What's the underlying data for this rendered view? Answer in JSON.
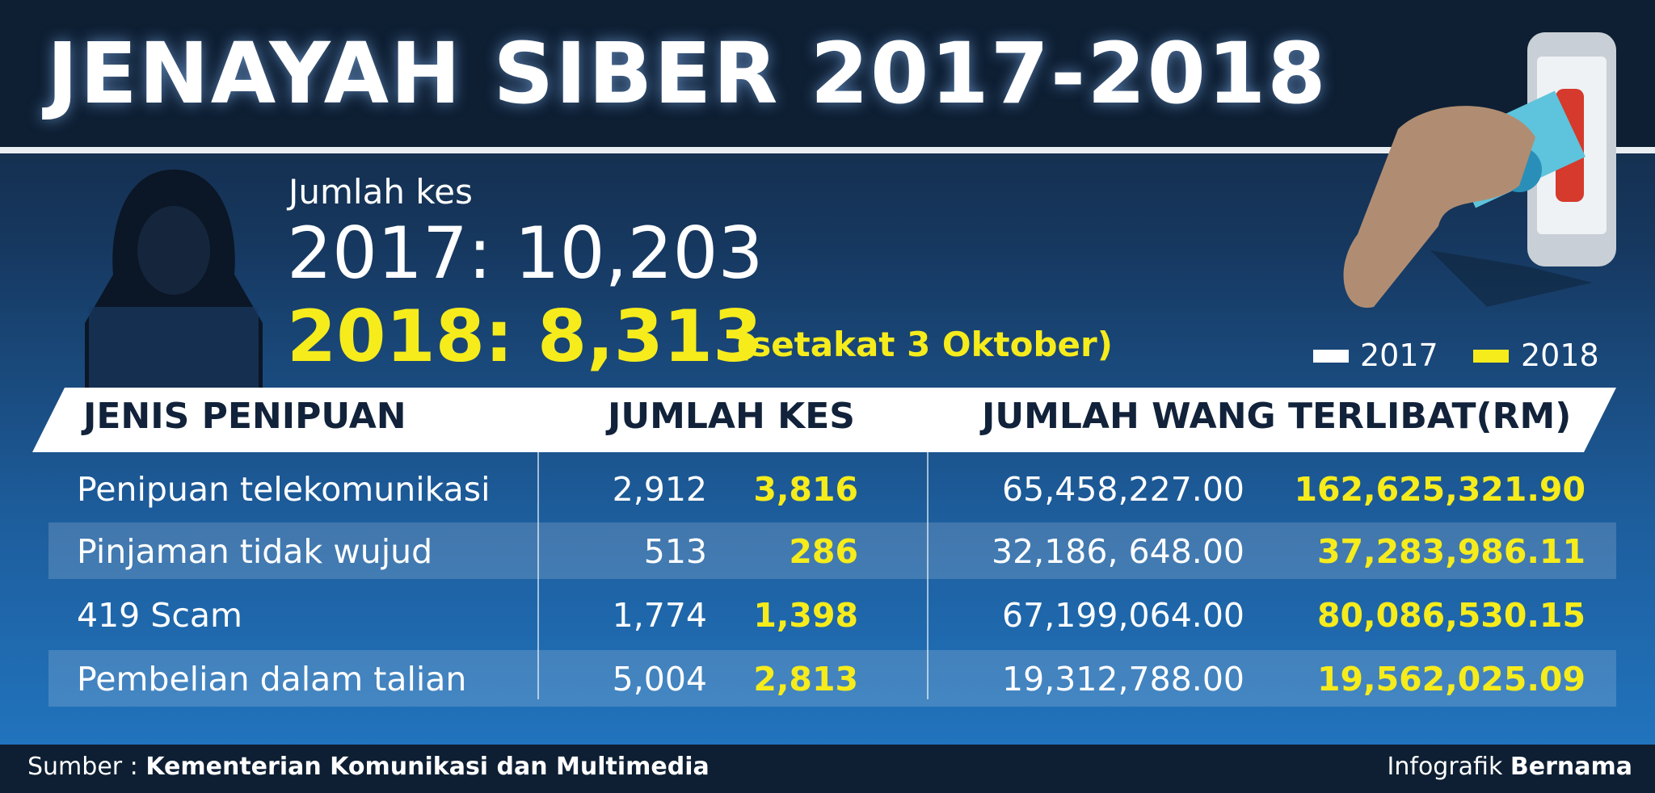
{
  "header": {
    "title": "JENAYAH SIBER 2017-2018"
  },
  "summary": {
    "label": "Jumlah kes",
    "line2017": "2017: 10,203",
    "label2018": "2018:",
    "value2018": "8,313",
    "note": "(setakat 3 Oktober)"
  },
  "legend": [
    "2017",
    "2018"
  ],
  "table": {
    "columns": [
      "JENIS PENIPUAN",
      "JUMLAH KES",
      "JUMLAH WANG TERLIBAT(RM)"
    ],
    "rows": [
      [
        "Penipuan telekomunikasi",
        "2,912",
        "3,816",
        "65,458,227.00",
        "162,625,321.90"
      ],
      [
        "Pinjaman tidak wujud",
        "513",
        "286",
        "32,186, 648.00",
        "37,283,986.11"
      ],
      [
        "419 Scam",
        "1,774",
        "1,398",
        "67,199,064.00",
        "80,086,530.15"
      ],
      [
        "Pembelian dalam talian",
        "5,004",
        "2,813",
        "19,312,788.00",
        "19,562,025.09"
      ]
    ]
  },
  "footer": {
    "source_label": "Sumber :",
    "source": "Kementerian Komunikasi dan Multimedia",
    "credit_label": "Infografik",
    "credit": "Bernama"
  }
}
